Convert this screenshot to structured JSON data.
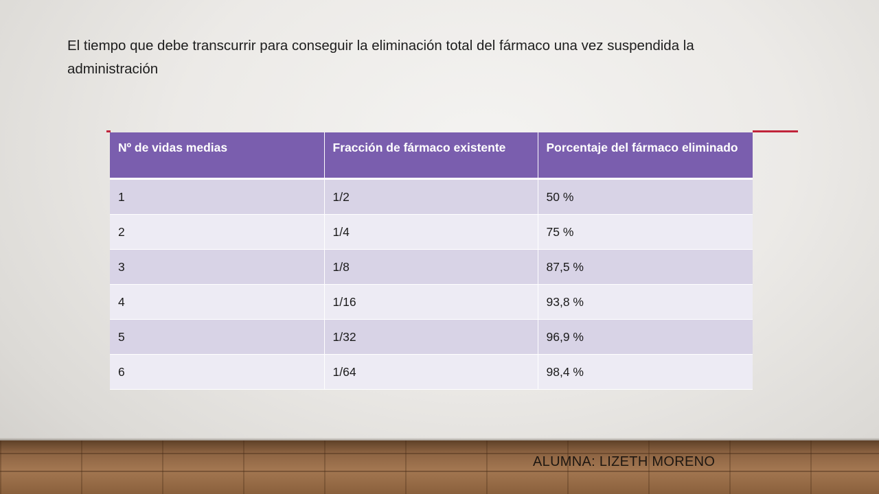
{
  "heading_text": "El tiempo que debe transcurrir  para conseguir  la eliminación  total del fármaco  una vez suspendida la administración",
  "table": {
    "headers": [
      "Nº de vidas medias",
      "Fracción de fármaco existente",
      "Porcentaje del fármaco eliminado"
    ],
    "rows": [
      [
        "1",
        "1/2",
        "50 %"
      ],
      [
        "2",
        "1/4",
        "75 %"
      ],
      [
        "3",
        "1/8",
        "87,5 %"
      ],
      [
        "4",
        "1/16",
        "93,8 %"
      ],
      [
        "5",
        "1/32",
        "96,9 %"
      ],
      [
        "6",
        "1/64",
        "98,4 %"
      ]
    ]
  },
  "footer": {
    "author": "ALUMNA: LIZETH MORENO"
  },
  "colors": {
    "header_bg": "#7a5eae",
    "row_odd": "#d8d3e6",
    "row_even": "#edebf4",
    "accent_line": "#c0243a"
  }
}
